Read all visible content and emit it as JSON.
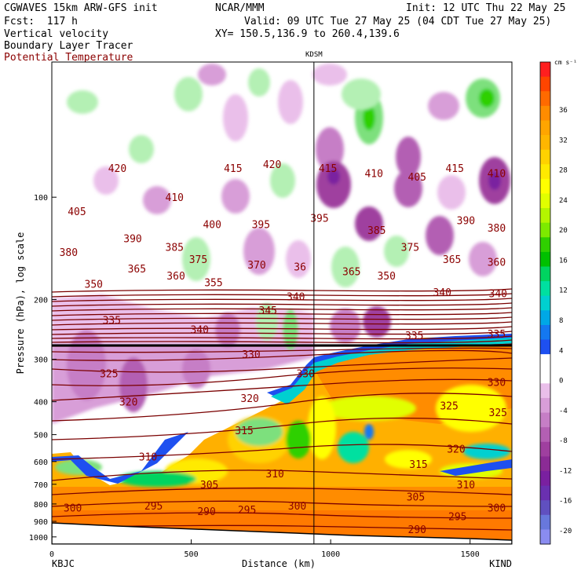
{
  "header": {
    "model": "CGWAVES 15km ARW-GFS init",
    "fcst": "Fcst:  117 h",
    "org": "NCAR/MMM",
    "init": "Init: 12 UTC Thu 22 May 25",
    "valid": "Valid: 09 UTC Tue 27 May 25 (04 CDT Tue 27 May 25)",
    "xy": "XY= 150.5,136.9 to 260.4,139.6",
    "field1": "Vertical velocity",
    "field2": "Boundary Layer Tracer",
    "field3": "Potential Temperature",
    "station_mid": "KDSM",
    "station_left": "KBJC",
    "station_right": "KIND"
  },
  "colors": {
    "theta_contour": "#7a0000",
    "pbl_line": "#000000",
    "theta_label": "#8b0000"
  },
  "chart_data": {
    "type": "heatmap",
    "title": "Vertical velocity",
    "xlabel": "Distance (km)",
    "ylabel": "Pressure (hPa), log scale",
    "xlim": [
      0,
      1650
    ],
    "ylim": [
      1050,
      40
    ],
    "y_scale": "log",
    "x_ticks": [
      0,
      500,
      1000,
      1500
    ],
    "y_ticks": [
      100,
      200,
      300,
      400,
      500,
      600,
      700,
      800,
      900,
      1000
    ],
    "marker_x_km": 940,
    "marker_label": "KDSM",
    "colorbar": {
      "units": "cm s⁻¹",
      "tick_labels": [
        36,
        32,
        28,
        24,
        20,
        16,
        12,
        8,
        4,
        0,
        -4,
        -8,
        -12,
        -16,
        -20
      ],
      "colors": [
        "#ff1f1f",
        "#ff4500",
        "#ff6a00",
        "#ff8c00",
        "#ffa500",
        "#ffb600",
        "#ffd200",
        "#ffea00",
        "#ffff00",
        "#e1ff00",
        "#b4f500",
        "#7dea00",
        "#2fd000",
        "#00c000",
        "#00d460",
        "#00e0a0",
        "#00d0d0",
        "#00a8e6",
        "#1478f0",
        "#1e50f0",
        "#ffffff",
        "#ffffff",
        "#eabfea",
        "#d89ed8",
        "#c67ec6",
        "#b35fb3",
        "#9f3f9f",
        "#8b2b95",
        "#7a20a0",
        "#6a30b0",
        "#6050c0",
        "#6878dc",
        "#8a8cf0"
      ]
    },
    "legend": [
      {
        "label": "Vertical velocity",
        "kind": "shading"
      },
      {
        "label": "Boundary Layer Tracer",
        "kind": "line"
      },
      {
        "label": "Potential Temperature",
        "kind": "contour"
      }
    ],
    "theta_labels": [
      {
        "x": 235,
        "p": 82,
        "v": "420"
      },
      {
        "x": 650,
        "p": 82,
        "v": "415"
      },
      {
        "x": 790,
        "p": 80,
        "v": "420"
      },
      {
        "x": 990,
        "p": 82,
        "v": "415"
      },
      {
        "x": 1155,
        "p": 85,
        "v": "410"
      },
      {
        "x": 1310,
        "p": 87,
        "v": "405"
      },
      {
        "x": 1445,
        "p": 82,
        "v": "415"
      },
      {
        "x": 1595,
        "p": 85,
        "v": "410"
      },
      {
        "x": 90,
        "p": 110,
        "v": "405"
      },
      {
        "x": 440,
        "p": 100,
        "v": "410"
      },
      {
        "x": 575,
        "p": 120,
        "v": "400"
      },
      {
        "x": 750,
        "p": 120,
        "v": "395"
      },
      {
        "x": 960,
        "p": 115,
        "v": "395"
      },
      {
        "x": 1165,
        "p": 125,
        "v": "385"
      },
      {
        "x": 1485,
        "p": 117,
        "v": "390"
      },
      {
        "x": 1595,
        "p": 123,
        "v": "380"
      },
      {
        "x": 290,
        "p": 132,
        "v": "390"
      },
      {
        "x": 440,
        "p": 140,
        "v": "385"
      },
      {
        "x": 60,
        "p": 145,
        "v": "380"
      },
      {
        "x": 1285,
        "p": 140,
        "v": "375"
      },
      {
        "x": 525,
        "p": 152,
        "v": "375"
      },
      {
        "x": 735,
        "p": 158,
        "v": "370"
      },
      {
        "x": 890,
        "p": 160,
        "v": "36"
      },
      {
        "x": 1075,
        "p": 165,
        "v": "365"
      },
      {
        "x": 1435,
        "p": 152,
        "v": "365"
      },
      {
        "x": 1595,
        "p": 155,
        "v": "360"
      },
      {
        "x": 305,
        "p": 162,
        "v": "365"
      },
      {
        "x": 445,
        "p": 170,
        "v": "360"
      },
      {
        "x": 580,
        "p": 178,
        "v": "355"
      },
      {
        "x": 150,
        "p": 180,
        "v": "350"
      },
      {
        "x": 1200,
        "p": 170,
        "v": "350"
      },
      {
        "x": 1400,
        "p": 190,
        "v": "340"
      },
      {
        "x": 1600,
        "p": 192,
        "v": "340"
      },
      {
        "x": 215,
        "p": 230,
        "v": "335"
      },
      {
        "x": 530,
        "p": 245,
        "v": "340"
      },
      {
        "x": 775,
        "p": 215,
        "v": "345"
      },
      {
        "x": 875,
        "p": 196,
        "v": "340"
      },
      {
        "x": 1300,
        "p": 255,
        "v": "335"
      },
      {
        "x": 1595,
        "p": 252,
        "v": "335"
      },
      {
        "x": 205,
        "p": 330,
        "v": "325"
      },
      {
        "x": 715,
        "p": 290,
        "v": "330"
      },
      {
        "x": 910,
        "p": 330,
        "v": "330"
      },
      {
        "x": 1595,
        "p": 350,
        "v": "330"
      },
      {
        "x": 275,
        "p": 400,
        "v": "320"
      },
      {
        "x": 710,
        "p": 390,
        "v": "320"
      },
      {
        "x": 1425,
        "p": 410,
        "v": "325"
      },
      {
        "x": 1600,
        "p": 430,
        "v": "325"
      },
      {
        "x": 690,
        "p": 485,
        "v": "315"
      },
      {
        "x": 1450,
        "p": 550,
        "v": "320"
      },
      {
        "x": 345,
        "p": 580,
        "v": "310"
      },
      {
        "x": 1315,
        "p": 610,
        "v": "315"
      },
      {
        "x": 800,
        "p": 650,
        "v": "310"
      },
      {
        "x": 565,
        "p": 700,
        "v": "305"
      },
      {
        "x": 1485,
        "p": 700,
        "v": "310"
      },
      {
        "x": 1305,
        "p": 760,
        "v": "305"
      },
      {
        "x": 75,
        "p": 820,
        "v": "300"
      },
      {
        "x": 365,
        "p": 810,
        "v": "295"
      },
      {
        "x": 555,
        "p": 840,
        "v": "290"
      },
      {
        "x": 700,
        "p": 830,
        "v": "295"
      },
      {
        "x": 880,
        "p": 810,
        "v": "300"
      },
      {
        "x": 1455,
        "p": 870,
        "v": "295"
      },
      {
        "x": 1595,
        "p": 820,
        "v": "300"
      },
      {
        "x": 1310,
        "p": 950,
        "v": "290"
      }
    ]
  }
}
